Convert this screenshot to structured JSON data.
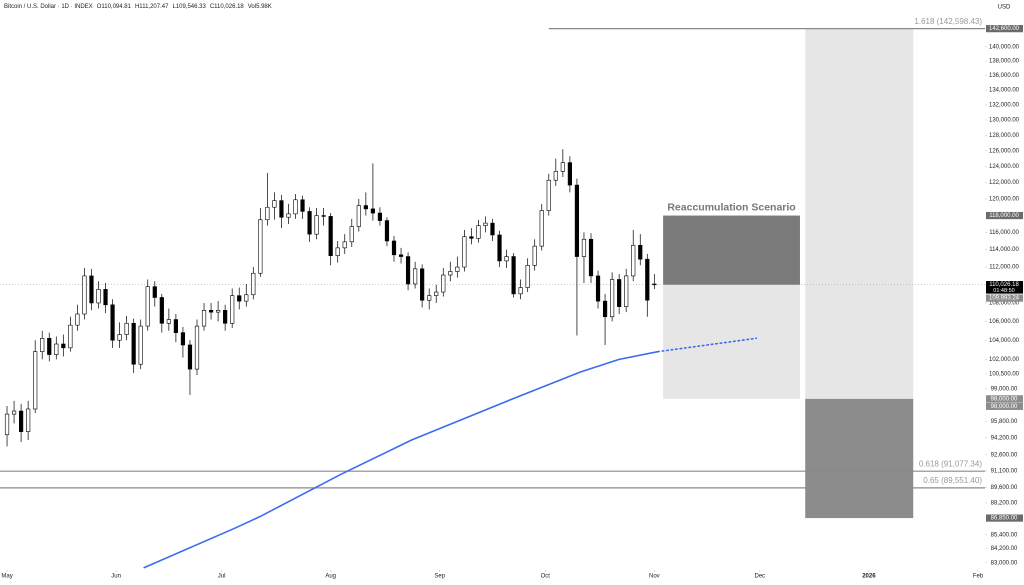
{
  "chart_data": {
    "type": "candlestick",
    "header": {
      "title": "Bitcoin / U.S. Dollar · 1D · INDEX",
      "fields": [
        {
          "key": "O",
          "value": 110094.81,
          "label": "110,094.81"
        },
        {
          "key": "H",
          "value": 111207.47,
          "label": "111,207.47"
        },
        {
          "key": "L",
          "value": 109546.33,
          "label": "109,546.33"
        },
        {
          "key": "C",
          "value": 110026.18,
          "label": "110,026.18"
        },
        {
          "key": "Vol",
          "value": 5980,
          "label": "5.98K"
        }
      ]
    },
    "currency": "USD",
    "log_scale": true,
    "up_color": "#ffffff",
    "down_color": "#000000",
    "x": [
      0,
      2,
      4,
      6,
      8,
      10,
      12,
      14,
      16,
      18,
      20,
      22,
      24,
      26,
      28,
      30,
      32,
      34,
      36,
      38,
      40,
      42,
      44,
      46,
      48,
      50,
      52,
      54,
      56,
      58,
      60,
      62,
      64,
      66,
      68,
      70,
      72,
      74,
      76,
      78,
      80,
      82,
      84,
      86,
      88,
      90,
      92,
      94,
      96,
      98,
      100,
      102,
      104,
      106,
      108,
      110,
      112,
      114,
      116,
      118,
      120,
      122,
      124,
      126,
      128,
      130,
      132,
      134,
      136,
      138,
      140,
      142,
      144,
      146,
      148,
      150,
      152,
      154,
      156,
      158,
      160,
      162,
      164,
      166,
      168,
      170,
      172,
      174,
      176,
      178,
      180,
      182,
      184
    ],
    "open": [
      94500,
      96500,
      96800,
      94800,
      97000,
      102800,
      104200,
      102500,
      103600,
      103200,
      105600,
      106800,
      111000,
      108000,
      109500,
      107800,
      104000,
      104600,
      105800,
      101500,
      105500,
      109800,
      108600,
      105800,
      106200,
      104800,
      103500,
      101000,
      105500,
      107200,
      107000,
      107200,
      105800,
      108800,
      108200,
      108900,
      111300,
      117500,
      119000,
      119800,
      117800,
      118200,
      119900,
      118500,
      115800,
      118000,
      117900,
      113300,
      114200,
      114900,
      116700,
      119200,
      118800,
      118300,
      117400,
      115000,
      113400,
      113200,
      110100,
      111800,
      108300,
      108800,
      109200,
      111100,
      111500,
      112000,
      115500,
      115300,
      116800,
      117100,
      115700,
      112700,
      113200,
      109000,
      109700,
      112200,
      114400,
      118600,
      122300,
      123400,
      124500,
      121700,
      113200,
      115200,
      111000,
      108200,
      106500,
      110600,
      107600,
      111000,
      114500,
      112900,
      110094.81
    ],
    "high": [
      97300,
      97800,
      97500,
      97800,
      104000,
      105000,
      104800,
      104400,
      104600,
      106500,
      107800,
      111900,
      111800,
      110400,
      110200,
      108400,
      105900,
      106600,
      106300,
      106200,
      110600,
      110400,
      109000,
      107400,
      106800,
      105400,
      104000,
      106200,
      108000,
      108000,
      108200,
      107800,
      109600,
      109700,
      110100,
      112000,
      118900,
      123200,
      120800,
      120500,
      119400,
      120600,
      120400,
      119000,
      118900,
      118900,
      118300,
      115000,
      115800,
      117600,
      120000,
      120800,
      124400,
      119000,
      117800,
      115600,
      114200,
      113700,
      112600,
      112300,
      109600,
      110000,
      111900,
      112600,
      113200,
      116300,
      116500,
      117500,
      117900,
      117600,
      116200,
      114000,
      113600,
      110600,
      113000,
      115200,
      119400,
      123100,
      125000,
      126200,
      125300,
      122500,
      116000,
      115900,
      111600,
      109000,
      111400,
      111200,
      111800,
      116300,
      115800,
      113500,
      111207.47
    ],
    "low": [
      93400,
      95600,
      93800,
      94000,
      96600,
      102000,
      101800,
      102000,
      102300,
      102800,
      105000,
      106200,
      107200,
      107400,
      106900,
      103200,
      103200,
      104000,
      100600,
      101000,
      105000,
      107600,
      104800,
      105000,
      103800,
      102200,
      98400,
      100400,
      105000,
      106200,
      106000,
      105000,
      105300,
      107300,
      107600,
      108400,
      110900,
      116800,
      117500,
      116500,
      117000,
      117600,
      117600,
      114900,
      115200,
      116800,
      112200,
      112500,
      113500,
      114300,
      116100,
      118000,
      117400,
      116800,
      114400,
      112600,
      112400,
      109400,
      109600,
      107500,
      107300,
      108000,
      108700,
      110400,
      110800,
      111500,
      114600,
      114800,
      116000,
      115000,
      112000,
      111900,
      108600,
      108400,
      109200,
      111600,
      113900,
      118000,
      121600,
      122700,
      120800,
      104500,
      110200,
      110200,
      107400,
      103500,
      106000,
      106800,
      107000,
      110400,
      112200,
      106500,
      109546.33
    ],
    "close": [
      96500,
      96800,
      94800,
      97000,
      102800,
      104200,
      102500,
      103600,
      103200,
      105600,
      106800,
      111000,
      108000,
      109500,
      107800,
      104000,
      104600,
      105800,
      101500,
      105500,
      109800,
      108600,
      105800,
      106200,
      104800,
      103500,
      101000,
      105500,
      107200,
      107000,
      107200,
      105800,
      108800,
      108200,
      108900,
      111300,
      117500,
      119000,
      119800,
      117800,
      118200,
      119900,
      118500,
      115800,
      118000,
      117900,
      113300,
      114200,
      114900,
      116700,
      119200,
      118800,
      118300,
      117400,
      115000,
      113400,
      113200,
      110100,
      111800,
      108300,
      108800,
      109200,
      111100,
      111500,
      112000,
      115500,
      115300,
      116800,
      117100,
      115700,
      112700,
      113200,
      109000,
      109700,
      112200,
      114400,
      118600,
      122300,
      123400,
      124500,
      121700,
      113200,
      115200,
      111000,
      108200,
      106500,
      110600,
      107600,
      111000,
      114500,
      112900,
      108300,
      110026.18
    ],
    "series": [
      {
        "color": "#3d6bef",
        "style": "solid",
        "x": [
          39,
          65,
          72,
          95,
          115,
          143,
          163,
          174,
          185
        ],
        "values": [
          82600,
          86000,
          87000,
          90800,
          94000,
          97900,
          100700,
          102000,
          102800
        ]
      },
      {
        "color": "#3d6bef",
        "style": "dotted",
        "x": [
          185,
          213
        ],
        "values": [
          102800,
          104200
        ]
      }
    ],
    "levels": [
      {
        "value": 142598.43,
        "label": "1.618 (142,598.43)",
        "from": 154
      },
      {
        "value": 91077.34,
        "label": "0.618 (91,077.34)",
        "from": -2
      },
      {
        "value": 89551.4,
        "label": "0.65 (89,551.40)",
        "from": -2
      }
    ],
    "zones": [
      {
        "x": [
          186.5,
          225.4
        ],
        "top": 118000,
        "bottom": 110000,
        "color": "#7a7a7a"
      },
      {
        "x": [
          186.5,
          225.4
        ],
        "top": 110000,
        "bottom": 98000,
        "color": "#e6e6e6"
      },
      {
        "x": [
          226.9,
          257.6
        ],
        "top": 142600,
        "bottom": 98000,
        "color": "#e6e6e6"
      },
      {
        "x": [
          226.9,
          257.6
        ],
        "top": 98000,
        "bottom": 86850,
        "color": "#8c8c8c"
      }
    ],
    "scenario_label": "Reaccumulation Scenario",
    "price_labels": [
      {
        "value": 142600,
        "label": "142,600.00",
        "color": "#6b6b6b"
      },
      {
        "value": 118000,
        "label": "118,000.00",
        "color": "#6b6b6b"
      },
      {
        "value": 110026.18,
        "label": "110,026.18",
        "color": "#000000",
        "note": "01:48:50"
      },
      {
        "value": 109993.24,
        "label": "109,993.24",
        "color": "#8c8c8c"
      },
      {
        "value": 98000,
        "label": "98,000.00",
        "color": "#8c8c8c"
      },
      {
        "value": 98000,
        "label": "98,000.00",
        "color": "#8c8c8c"
      },
      {
        "value": 86850,
        "label": "86,850.00",
        "color": "#6b6b6b"
      }
    ],
    "current_price": 110026.18,
    "xlim": [
      -2,
      278
    ],
    "ylim": [
      82400,
      146800
    ],
    "xticks": [
      {
        "value": 0,
        "label": "May"
      },
      {
        "value": 31,
        "label": "Jun"
      },
      {
        "value": 61,
        "label": "Jul"
      },
      {
        "value": 92,
        "label": "Aug"
      },
      {
        "value": 123,
        "label": "Sep"
      },
      {
        "value": 153,
        "label": "Oct"
      },
      {
        "value": 184,
        "label": "Nov"
      },
      {
        "value": 214,
        "label": "Dec"
      },
      {
        "value": 245,
        "label": "2026"
      },
      {
        "value": 276,
        "label": "Feb"
      }
    ],
    "yticks": [
      {
        "value": 83000,
        "label": "83,000.00"
      },
      {
        "value": 84200,
        "label": "84,200.00"
      },
      {
        "value": 85400,
        "label": "85,400.00"
      },
      {
        "value": 88200,
        "label": "88,200.00"
      },
      {
        "value": 89600,
        "label": "89,600.00"
      },
      {
        "value": 91100,
        "label": "91,100.00"
      },
      {
        "value": 92600,
        "label": "92,600.00"
      },
      {
        "value": 94200,
        "label": "94,200.00"
      },
      {
        "value": 95800,
        "label": "95,800.00"
      },
      {
        "value": 99000,
        "label": "99,000.00"
      },
      {
        "value": 100500,
        "label": "100,500.00"
      },
      {
        "value": 102000,
        "label": "102,000.00"
      },
      {
        "value": 104000,
        "label": "104,000.00"
      },
      {
        "value": 106000,
        "label": "106,000.00"
      },
      {
        "value": 108000,
        "label": "108,000.00"
      },
      {
        "value": 112000,
        "label": "112,000.00"
      },
      {
        "value": 114000,
        "label": "114,000.00"
      },
      {
        "value": 116000,
        "label": "116,000.00"
      },
      {
        "value": 120000,
        "label": "120,000.00"
      },
      {
        "value": 122000,
        "label": "122,000.00"
      },
      {
        "value": 124000,
        "label": "124,000.00"
      },
      {
        "value": 126000,
        "label": "126,000.00"
      },
      {
        "value": 128000,
        "label": "128,000.00"
      },
      {
        "value": 130000,
        "label": "130,000.00"
      },
      {
        "value": 132000,
        "label": "132,000.00"
      },
      {
        "value": 134000,
        "label": "134,000.00"
      },
      {
        "value": 136000,
        "label": "136,000.00"
      },
      {
        "value": 138000,
        "label": "138,000.00"
      },
      {
        "value": 140000,
        "label": "140,000.00"
      }
    ]
  }
}
